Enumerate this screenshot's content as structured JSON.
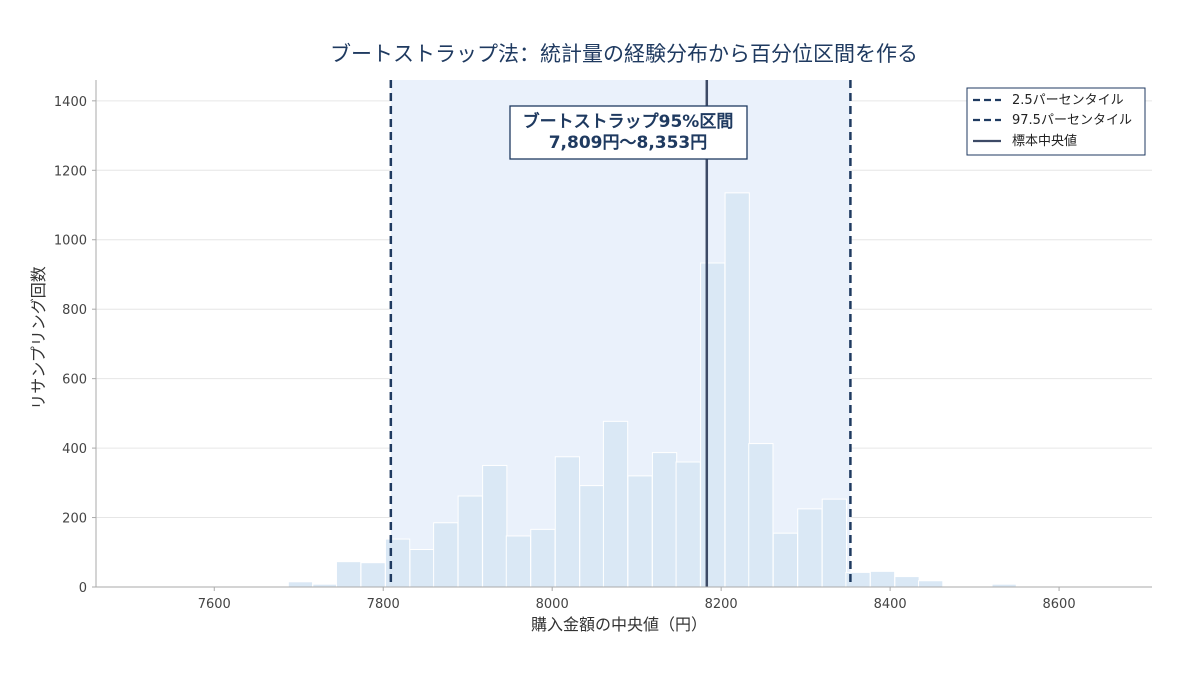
{
  "chart_data": {
    "type": "bar",
    "title": "ブートストラップ法：統計量の経験分布から百分位区間を作る",
    "xlabel": "購入金額の中央値（円）",
    "ylabel": "リサンプリング回数",
    "xlim": [
      7460,
      8710
    ],
    "ylim": [
      0,
      1460
    ],
    "xticks": [
      7600,
      7800,
      8000,
      8200,
      8400,
      8600
    ],
    "yticks": [
      0,
      200,
      400,
      600,
      800,
      1000,
      1200,
      1400
    ],
    "grid": "horizontal",
    "bin_width": 28.7,
    "bins": [
      {
        "x": 7702,
        "count": 15
      },
      {
        "x": 7731,
        "count": 8
      },
      {
        "x": 7759,
        "count": 73
      },
      {
        "x": 7788,
        "count": 70
      },
      {
        "x": 7817,
        "count": 138
      },
      {
        "x": 7846,
        "count": 108
      },
      {
        "x": 7874,
        "count": 185
      },
      {
        "x": 7903,
        "count": 262
      },
      {
        "x": 7932,
        "count": 350
      },
      {
        "x": 7960,
        "count": 147
      },
      {
        "x": 7989,
        "count": 166
      },
      {
        "x": 8018,
        "count": 375
      },
      {
        "x": 8047,
        "count": 292
      },
      {
        "x": 8075,
        "count": 477
      },
      {
        "x": 8104,
        "count": 320
      },
      {
        "x": 8133,
        "count": 387
      },
      {
        "x": 8161,
        "count": 360
      },
      {
        "x": 8190,
        "count": 933
      },
      {
        "x": 8219,
        "count": 1135
      },
      {
        "x": 8247,
        "count": 413
      },
      {
        "x": 8276,
        "count": 155
      },
      {
        "x": 8305,
        "count": 225
      },
      {
        "x": 8334,
        "count": 253
      },
      {
        "x": 8362,
        "count": 42
      },
      {
        "x": 8391,
        "count": 45
      },
      {
        "x": 8420,
        "count": 30
      },
      {
        "x": 8448,
        "count": 18
      },
      {
        "x": 8535,
        "count": 8
      }
    ],
    "interval": {
      "lower": 7809,
      "upper": 8353
    },
    "median": 8183,
    "annotation": {
      "line1": "ブートストラップ95%区間",
      "line2": "7,809円〜8,353円"
    },
    "legend": {
      "placement": "top-right",
      "entries": [
        {
          "label": "2.5パーセンタイル",
          "style": "dashed"
        },
        {
          "label": "97.5パーセンタイル",
          "style": "dashed"
        },
        {
          "label": "標本中央値",
          "style": "solid"
        }
      ]
    },
    "colors": {
      "bar_fill": "#dae8f5",
      "bar_edge": "#ffffff",
      "band_fill": "#eaf1fb",
      "percentile_line": "#1f3a60",
      "median_line": "#3d4a66",
      "title": "#1f3a60"
    }
  }
}
